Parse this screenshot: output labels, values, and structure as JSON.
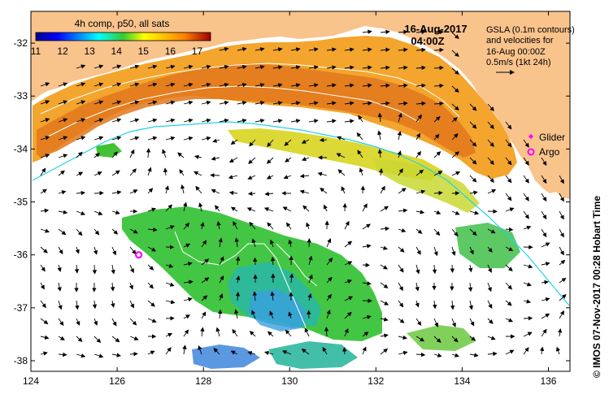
{
  "colorbar": {
    "title": "4h comp, p50, all sats",
    "ticks": [
      "11",
      "12",
      "13",
      "14",
      "15",
      "16",
      "17"
    ],
    "min": 11,
    "max": 17.5
  },
  "date": {
    "line1": "16-Aug-2017",
    "line2": "04:00Z"
  },
  "info": {
    "lines": [
      "GSLA (0.1m contours)",
      "and velocities for",
      "16-Aug 00:00Z",
      "0.5m/s (1kt 24h)"
    ]
  },
  "legend": {
    "glider": "Glider",
    "argo": "Argo"
  },
  "axes": {
    "x_ticks": [
      "124",
      "126",
      "128",
      "130",
      "132",
      "134",
      "136"
    ],
    "x_values": [
      124,
      126,
      128,
      130,
      132,
      134,
      136
    ],
    "y_ticks": [
      "-32",
      "-33",
      "-34",
      "-35",
      "-36",
      "-37",
      "-38"
    ],
    "y_values": [
      -32,
      -33,
      -34,
      -35,
      -36,
      -37,
      -38
    ],
    "lon_range": [
      124,
      136.5
    ],
    "lat_range": [
      -38.2,
      -31.4
    ]
  },
  "credit": "© IMOS 07-Nov-2017 00:28 Hobart Time",
  "colors": {
    "land": "#f9c38c",
    "argo": "#ff00ff",
    "glider": "#ff00ff",
    "bathymetry": "#22d3e6"
  },
  "markers": {
    "argo_position": [
      126.5,
      -36.0
    ]
  }
}
